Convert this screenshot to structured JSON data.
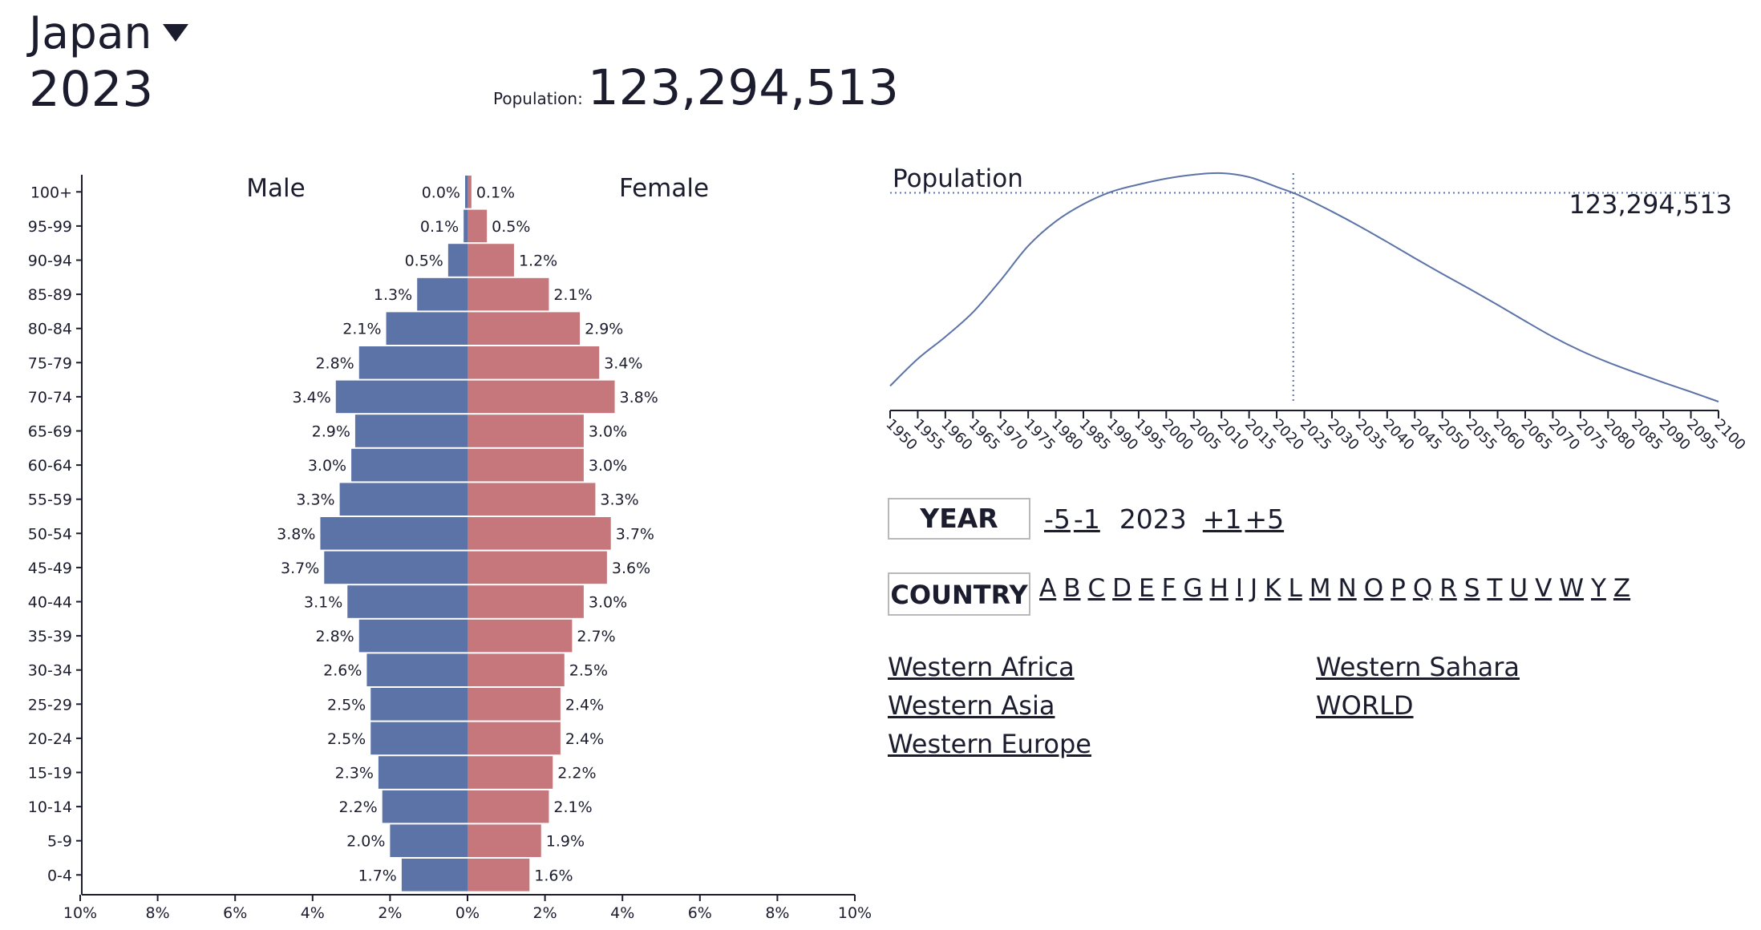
{
  "header": {
    "country": "Japan",
    "year": "2023",
    "population_label": "Population:",
    "population_value": "123,294,513"
  },
  "controls": {
    "year_label": "YEAR",
    "minus5": "-5",
    "minus1": "-1",
    "current_year": "2023",
    "plus1": "+1",
    "plus5": "+5",
    "country_label": "COUNTRY",
    "letters": [
      "A",
      "B",
      "C",
      "D",
      "E",
      "F",
      "G",
      "H",
      "I",
      "J",
      "K",
      "L",
      "M",
      "N",
      "O",
      "P",
      "Q",
      "R",
      "S",
      "T",
      "U",
      "V",
      "W",
      "Y",
      "Z"
    ],
    "regions": [
      "Western Africa",
      "Western Asia",
      "Western Europe",
      "Western Sahara",
      "WORLD"
    ]
  },
  "colors": {
    "male": "#5b73a7",
    "female": "#c6777b",
    "line": "#5b73a7",
    "text": "#1b1c2e"
  },
  "chart_data": [
    {
      "type": "bar",
      "subtype": "population-pyramid",
      "left_label": "Male",
      "right_label": "Female",
      "categories": [
        "100+",
        "95-99",
        "90-94",
        "85-89",
        "80-84",
        "75-79",
        "70-74",
        "65-69",
        "60-64",
        "55-59",
        "50-54",
        "45-49",
        "40-44",
        "35-39",
        "30-34",
        "25-29",
        "20-24",
        "15-19",
        "10-14",
        "5-9",
        "0-4"
      ],
      "series": [
        {
          "name": "Male",
          "values": [
            0.0,
            0.1,
            0.5,
            1.3,
            2.1,
            2.8,
            3.4,
            2.9,
            3.0,
            3.3,
            3.8,
            3.7,
            3.1,
            2.8,
            2.6,
            2.5,
            2.5,
            2.3,
            2.2,
            2.0,
            1.7
          ]
        },
        {
          "name": "Female",
          "values": [
            0.1,
            0.5,
            1.2,
            2.1,
            2.9,
            3.4,
            3.8,
            3.0,
            3.0,
            3.3,
            3.7,
            3.6,
            3.0,
            2.7,
            2.5,
            2.4,
            2.4,
            2.2,
            2.1,
            1.9,
            1.6
          ]
        }
      ],
      "x_ticks": [
        "10%",
        "8%",
        "6%",
        "4%",
        "2%",
        "0%",
        "2%",
        "4%",
        "6%",
        "8%",
        "10%"
      ],
      "xlim": [
        -10,
        10
      ]
    },
    {
      "type": "line",
      "title": "Population",
      "x": [
        1950,
        1955,
        1960,
        1965,
        1970,
        1975,
        1980,
        1985,
        1990,
        1995,
        2000,
        2005,
        2010,
        2015,
        2020,
        2023,
        2025,
        2030,
        2035,
        2040,
        2045,
        2050,
        2055,
        2060,
        2065,
        2070,
        2075,
        2080,
        2085,
        2090,
        2095,
        2100
      ],
      "y": [
        84.0,
        89.5,
        94.0,
        99.0,
        105.5,
        112.5,
        117.5,
        121.0,
        123.5,
        125.0,
        126.2,
        127.0,
        127.3,
        126.5,
        124.5,
        123.3,
        122.3,
        119.5,
        116.5,
        113.3,
        110.0,
        106.8,
        103.7,
        100.5,
        97.2,
        94.0,
        91.2,
        88.8,
        86.7,
        84.7,
        82.8,
        80.8
      ],
      "y_unit": "millions",
      "x_ticks": [
        "1950",
        "1955",
        "1960",
        "1965",
        "1970",
        "1975",
        "1980",
        "1985",
        "1990",
        "1995",
        "2000",
        "2005",
        "2010",
        "2015",
        "2020",
        "2025",
        "2030",
        "2035",
        "2040",
        "2045",
        "2050",
        "2055",
        "2060",
        "2065",
        "2070",
        "2075",
        "2080",
        "2085",
        "2090",
        "2095",
        "2100"
      ],
      "xlim": [
        1950,
        2100
      ],
      "marker_year": 2023,
      "marker_value_label": "123,294,513"
    }
  ]
}
